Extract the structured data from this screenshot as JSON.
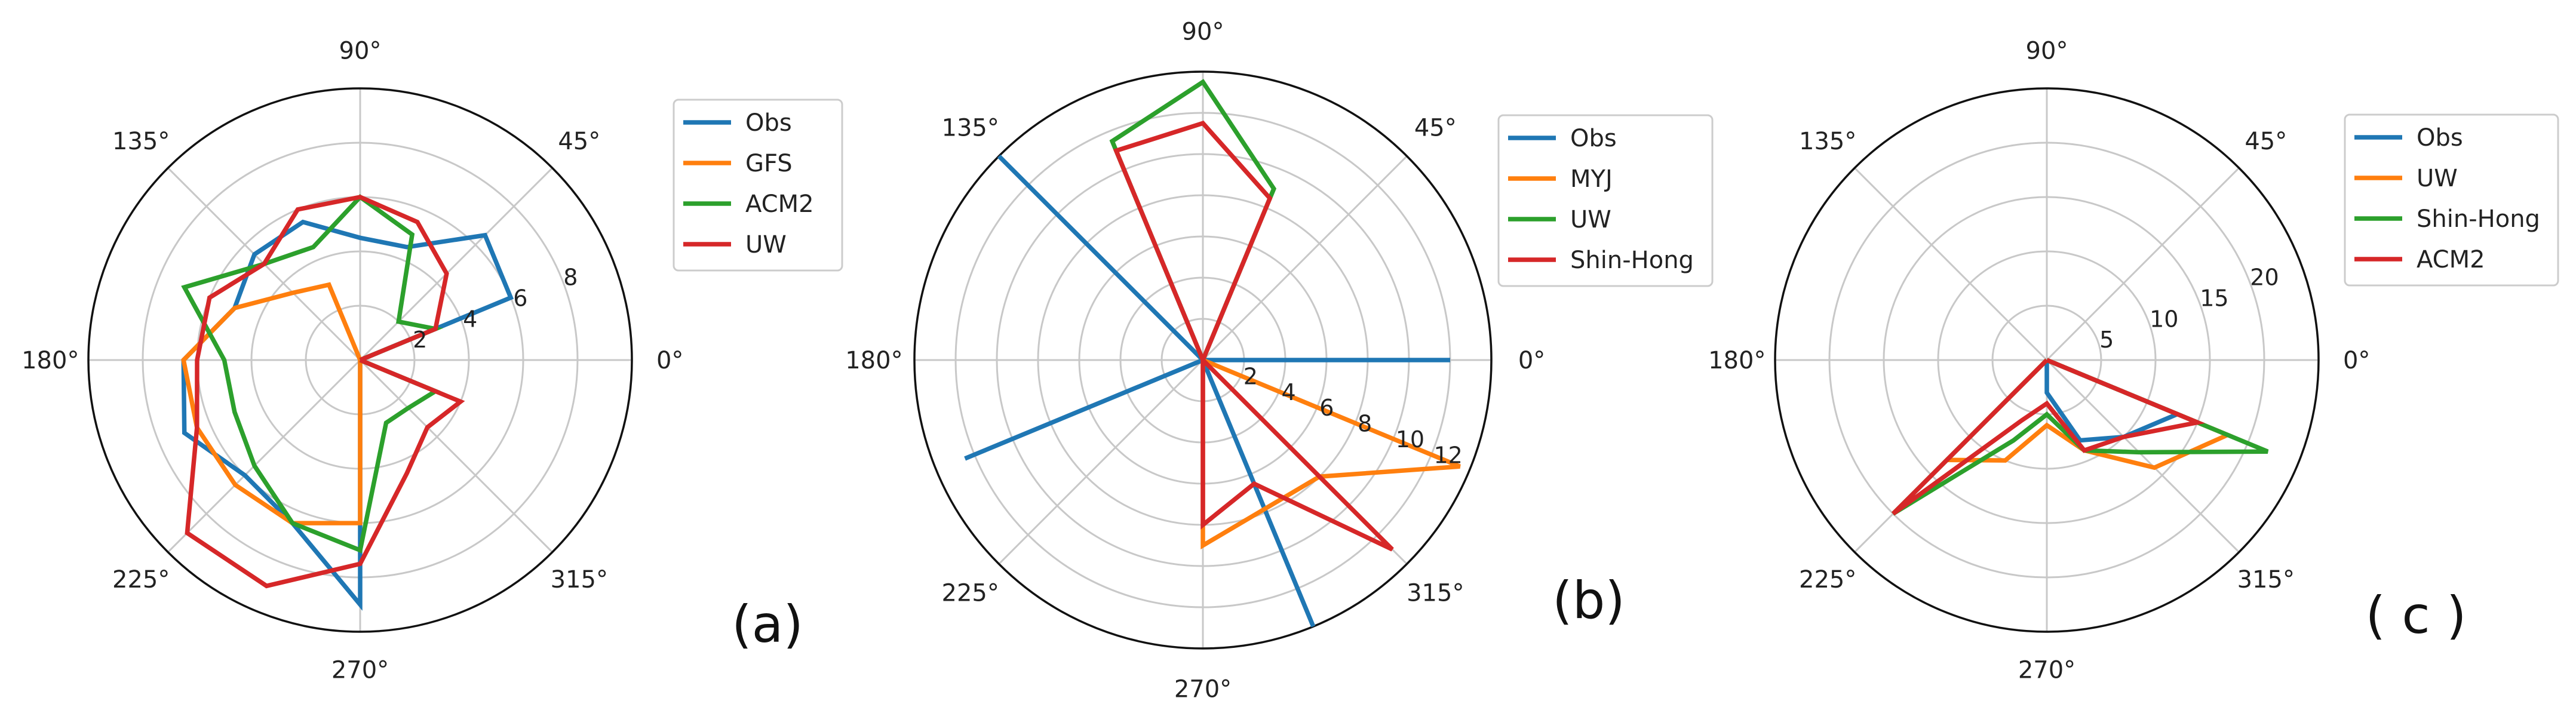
{
  "colors": {
    "blue": "#1f77b4",
    "orange": "#ff7f0e",
    "green": "#2ca02c",
    "red": "#d62728",
    "grid": "#c8c8c8",
    "frame": "#111111"
  },
  "chart_data": [
    {
      "type": "polar-line",
      "panel_label": "(a)",
      "theta_ticks": [
        "0°",
        "45°",
        "90°",
        "135°",
        "180°",
        "225°",
        "270°",
        "315°"
      ],
      "r_ticks": [
        "2",
        "4",
        "6",
        "8"
      ],
      "rlim": [
        0,
        10
      ],
      "grid": true,
      "legend": "right",
      "series": [
        {
          "name": "Obs",
          "color": "blue",
          "points": [
            [
              0,
              0
            ],
            [
              22.5,
              6
            ],
            [
              45,
              6.5
            ],
            [
              67.5,
              4.5
            ],
            [
              90,
              4.5
            ],
            [
              112.5,
              5.5
            ],
            [
              135,
              5.5
            ],
            [
              157.5,
              5
            ],
            [
              180,
              6.5
            ],
            [
              202.5,
              7
            ],
            [
              225,
              6
            ],
            [
              247.5,
              6.5
            ],
            [
              270,
              9
            ],
            [
              292.5,
              0
            ],
            [
              315,
              0
            ],
            [
              337.5,
              0
            ],
            [
              360,
              0
            ]
          ]
        },
        {
          "name": "GFS",
          "color": "orange",
          "points": [
            [
              0,
              0
            ],
            [
              22.5,
              0
            ],
            [
              45,
              0
            ],
            [
              67.5,
              0
            ],
            [
              90,
              0
            ],
            [
              112.5,
              3
            ],
            [
              135,
              3.5
            ],
            [
              157.5,
              5
            ],
            [
              180,
              6.5
            ],
            [
              202.5,
              6.5
            ],
            [
              225,
              6.5
            ],
            [
              247.5,
              6.5
            ],
            [
              270,
              6
            ],
            [
              292.5,
              0
            ],
            [
              315,
              0
            ],
            [
              337.5,
              0
            ],
            [
              360,
              0
            ]
          ]
        },
        {
          "name": "ACM2",
          "color": "green",
          "points": [
            [
              0,
              0
            ],
            [
              22.5,
              3
            ],
            [
              45,
              2
            ],
            [
              67.5,
              5
            ],
            [
              90,
              6
            ],
            [
              112.5,
              4.5
            ],
            [
              135,
              5
            ],
            [
              157.5,
              7
            ],
            [
              180,
              5
            ],
            [
              202.5,
              5
            ],
            [
              225,
              5.5
            ],
            [
              247.5,
              6.5
            ],
            [
              270,
              7
            ],
            [
              292.5,
              2.5
            ],
            [
              315,
              2.5
            ],
            [
              337.5,
              3
            ],
            [
              360,
              0
            ]
          ]
        },
        {
          "name": "UW",
          "color": "red",
          "points": [
            [
              0,
              0
            ],
            [
              22.5,
              3
            ],
            [
              45,
              4.5
            ],
            [
              67.5,
              5.5
            ],
            [
              90,
              6
            ],
            [
              112.5,
              6
            ],
            [
              135,
              5
            ],
            [
              157.5,
              6
            ],
            [
              180,
              6
            ],
            [
              202.5,
              6.5
            ],
            [
              225,
              9
            ],
            [
              247.5,
              9
            ],
            [
              270,
              7.5
            ],
            [
              292.5,
              4.5
            ],
            [
              315,
              3.5
            ],
            [
              337.5,
              4
            ],
            [
              360,
              0
            ]
          ]
        }
      ]
    },
    {
      "type": "polar-line",
      "panel_label": "(b)",
      "theta_ticks": [
        "0°",
        "45°",
        "90°",
        "135°",
        "180°",
        "225°",
        "270°",
        "315°"
      ],
      "r_ticks": [
        "2",
        "4",
        "6",
        "8",
        "10",
        "12"
      ],
      "rlim": [
        0,
        14
      ],
      "grid": true,
      "legend": "right",
      "series": [
        {
          "name": "Obs",
          "color": "blue",
          "points": [
            [
              0,
              12
            ],
            [
              0,
              0
            ],
            [
              135,
              14
            ],
            [
              135,
              0
            ],
            [
              202.5,
              12.5
            ],
            [
              202.5,
              0
            ],
            [
              292.5,
              14
            ],
            [
              292.5,
              0
            ]
          ]
        },
        {
          "name": "MYJ",
          "color": "orange",
          "points": [
            [
              0,
              0
            ],
            [
              337.5,
              13.5
            ],
            [
              315,
              8
            ],
            [
              270,
              9
            ],
            [
              270,
              0
            ]
          ]
        },
        {
          "name": "UW",
          "color": "green",
          "points": [
            [
              0,
              0
            ],
            [
              67.5,
              9
            ],
            [
              90,
              13.5
            ],
            [
              112.5,
              11.5
            ],
            [
              112.5,
              0
            ]
          ]
        },
        {
          "name": "Shin-Hong",
          "color": "red",
          "points": [
            [
              0,
              0
            ],
            [
              67.5,
              8.5
            ],
            [
              90,
              11.5
            ],
            [
              112.5,
              11
            ],
            [
              112.5,
              0
            ],
            [
              270,
              8
            ],
            [
              292.5,
              6.5
            ],
            [
              315,
              13
            ],
            [
              315,
              0
            ]
          ]
        }
      ]
    },
    {
      "type": "polar-line",
      "panel_label": "( c )",
      "theta_ticks": [
        "0°",
        "45°",
        "90°",
        "135°",
        "180°",
        "225°",
        "270°",
        "315°"
      ],
      "r_ticks": [
        "5",
        "10",
        "15",
        "20"
      ],
      "rlim": [
        0,
        25
      ],
      "grid": true,
      "legend": "right",
      "series": [
        {
          "name": "Obs",
          "color": "blue",
          "points": [
            [
              0,
              0
            ],
            [
              270,
              3
            ],
            [
              292.5,
              8
            ],
            [
              315,
              10
            ],
            [
              337.5,
              13
            ],
            [
              0,
              0
            ]
          ]
        },
        {
          "name": "UW",
          "color": "orange",
          "points": [
            [
              0,
              0
            ],
            [
              225,
              13
            ],
            [
              247.5,
              10
            ],
            [
              270,
              6
            ],
            [
              292.5,
              9
            ],
            [
              315,
              14
            ],
            [
              337.5,
              18
            ],
            [
              0,
              0
            ]
          ]
        },
        {
          "name": "Shin-Hong",
          "color": "green",
          "points": [
            [
              0,
              0
            ],
            [
              225,
              20
            ],
            [
              247.5,
              8
            ],
            [
              270,
              5
            ],
            [
              292.5,
              9
            ],
            [
              315,
              12
            ],
            [
              337.5,
              22
            ],
            [
              0,
              0
            ]
          ]
        },
        {
          "name": "ACM2",
          "color": "red",
          "points": [
            [
              0,
              0
            ],
            [
              225,
              20
            ],
            [
              247.5,
              6
            ],
            [
              270,
              4
            ],
            [
              292.5,
              9
            ],
            [
              315,
              10
            ],
            [
              337.5,
              15
            ],
            [
              0,
              0
            ]
          ]
        }
      ]
    }
  ]
}
